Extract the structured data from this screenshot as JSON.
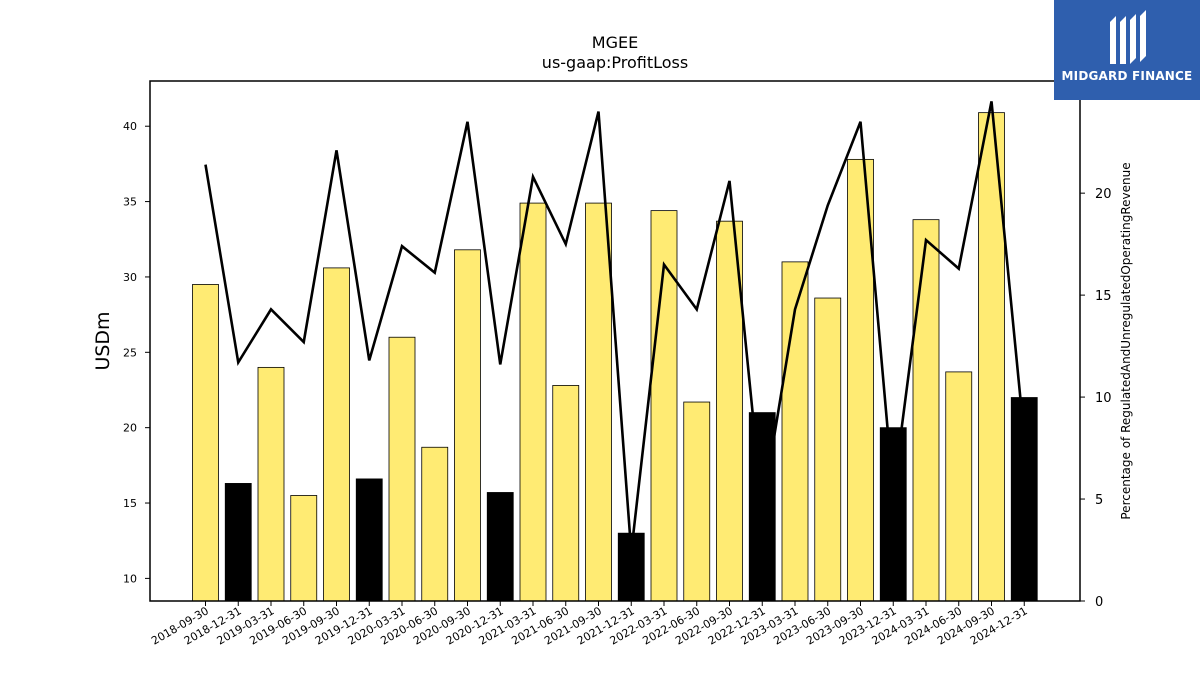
{
  "chart_data": {
    "type": "bar+line",
    "title": "MGEE",
    "subtitle": "us-gaap:ProfitLoss",
    "ylabel": "USDm",
    "y2label": "Percentage of RegulatedAndUnregulatedOperatingRevenue",
    "categories": [
      "2018-09-30",
      "2018-12-31",
      "2019-03-31",
      "2019-06-30",
      "2019-09-30",
      "2019-12-31",
      "2020-03-31",
      "2020-06-30",
      "2020-09-30",
      "2020-12-31",
      "2021-03-31",
      "2021-06-30",
      "2021-09-30",
      "2021-12-31",
      "2022-03-31",
      "2022-06-30",
      "2022-09-30",
      "2022-12-31",
      "2023-03-31",
      "2023-06-30",
      "2023-09-30",
      "2023-12-31",
      "2024-03-31",
      "2024-06-30",
      "2024-09-30",
      "2024-12-31"
    ],
    "bars": [
      29.5,
      16.3,
      24.0,
      15.5,
      30.6,
      16.6,
      26.0,
      18.7,
      31.8,
      15.7,
      34.9,
      22.8,
      34.9,
      13.0,
      34.4,
      21.7,
      33.7,
      21.0,
      31.0,
      28.6,
      37.8,
      20.0,
      33.8,
      23.7,
      40.9,
      22.0
    ],
    "bar_is_q4": [
      false,
      true,
      false,
      false,
      false,
      true,
      false,
      false,
      false,
      true,
      false,
      false,
      false,
      true,
      false,
      false,
      false,
      true,
      false,
      false,
      false,
      true,
      false,
      false,
      false,
      true
    ],
    "line": [
      21.4,
      11.7,
      14.3,
      12.7,
      22.1,
      11.8,
      17.4,
      16.1,
      23.5,
      11.6,
      20.8,
      17.5,
      24.0,
      2.4,
      16.5,
      14.3,
      20.6,
      4.5,
      14.3,
      19.4,
      23.5,
      5.3,
      17.7,
      16.3,
      24.5,
      8.0
    ],
    "ylim": [
      8.5,
      43
    ],
    "yticks": [
      10,
      15,
      20,
      25,
      30,
      35,
      40
    ],
    "y2lim": [
      0,
      25.5
    ],
    "y2ticks": [
      0,
      5,
      10,
      15,
      20
    ],
    "colors": {
      "bar": "#ffeb73",
      "bar_q4": "#000000",
      "line": "#000000",
      "edge": "#000000"
    }
  },
  "logo": {
    "text": "MIDGARD FINANCE",
    "bg": "#2f5fae"
  }
}
